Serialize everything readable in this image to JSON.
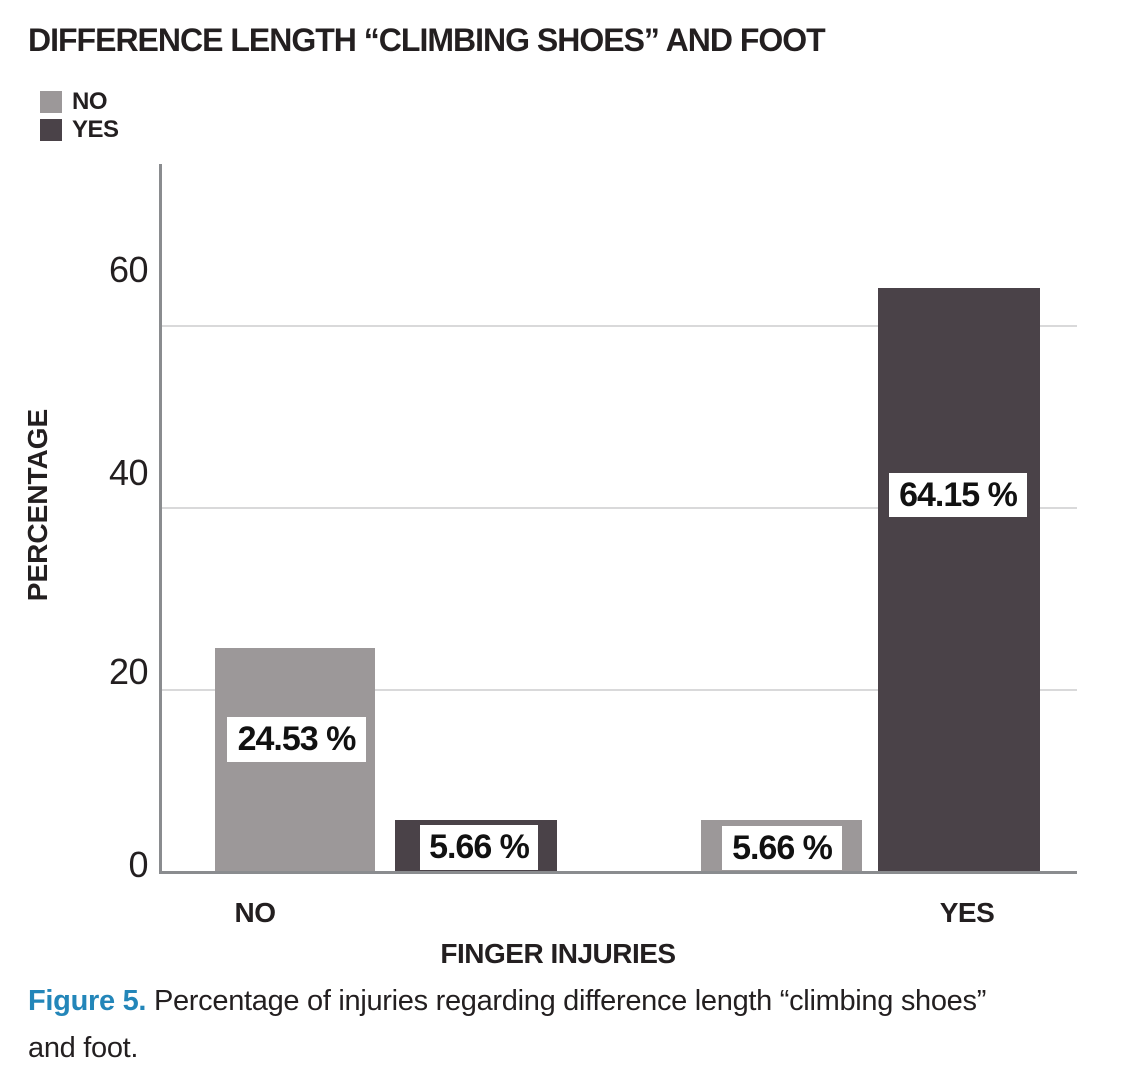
{
  "chart_data": {
    "type": "bar",
    "title": "DIFFERENCE LENGTH “CLIMBING SHOES” AND FOOT",
    "xlabel": "FINGER INJURIES",
    "ylabel": "PERCENTAGE",
    "units": "percent",
    "categories": [
      "NO",
      "YES"
    ],
    "series": [
      {
        "name": "NO",
        "color": "#9c9899",
        "values": [
          24.53,
          5.66
        ]
      },
      {
        "name": "YES",
        "color": "#4a4248",
        "values": [
          5.66,
          64.15
        ]
      }
    ],
    "bars": [
      {
        "category": "NO",
        "series": "NO",
        "value": 24.53,
        "label": "24.53 %"
      },
      {
        "category": "NO",
        "series": "YES",
        "value": 5.66,
        "label": "5.66 %"
      },
      {
        "category": "YES",
        "series": "NO",
        "value": 5.66,
        "label": "5.66 %"
      },
      {
        "category": "YES",
        "series": "YES",
        "value": 64.15,
        "label": "64.15 %"
      }
    ],
    "yticks": [
      0,
      20,
      40,
      60
    ],
    "ylim": [
      0,
      77.7
    ],
    "grid": "horizontal-light",
    "legend": {
      "position": "top-left",
      "entries": [
        {
          "label": "NO",
          "color": "#9c9899"
        },
        {
          "label": "YES",
          "color": "#4a4248"
        }
      ]
    },
    "colors": {
      "axis": "#8a8c8f",
      "gridline": "#d9d9da",
      "text": "#231f20",
      "value_box_bg": "#ffffff"
    }
  },
  "caption": {
    "label": "Figure 5.",
    "label_color": "#2386b9",
    "text": "Percentage of injuries regarding difference length “climbing shoes” and foot."
  }
}
